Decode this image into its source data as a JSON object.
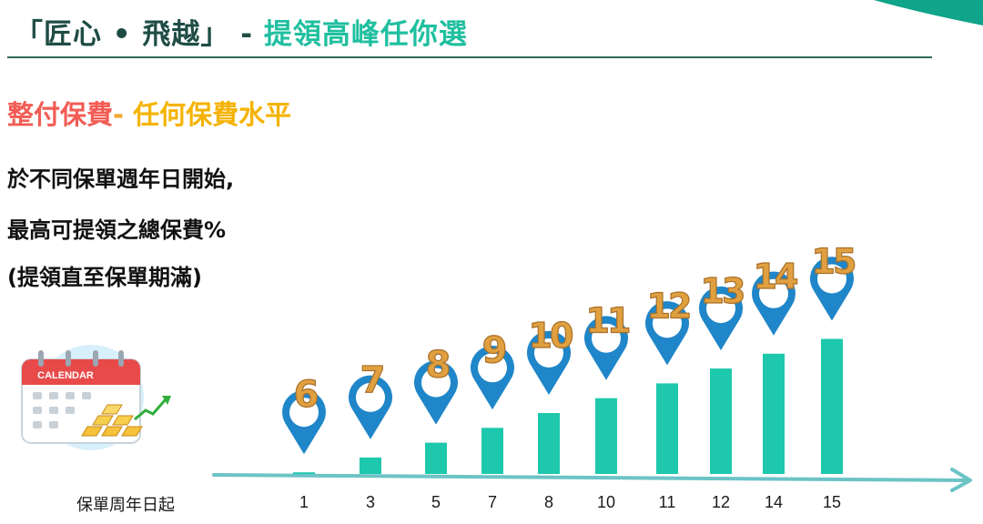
{
  "header": {
    "title_main": "「匠心 • 飛越」",
    "title_sep": " - ",
    "title_accent": "提領高峰任你選"
  },
  "subheading": {
    "part1": "整付保費",
    "dash": "-",
    "part2": " 任何保費水平"
  },
  "description": {
    "line1": "於不同保單週年日開始,",
    "line2": "最高可提領之總保費%",
    "line3": "(提領直至保單期滿)"
  },
  "illustration": {
    "calendar_label": "CALENDAR"
  },
  "colors": {
    "bar": "#1ec8ad",
    "axis": "#6cc3c6",
    "pin": "#1f86c9",
    "gold": "#e0a040",
    "title_dark": "#1f4d45",
    "title_accent": "#1fbf9f"
  },
  "chart_data": {
    "type": "bar",
    "xlabel": "保單周年日起",
    "categories": [
      "1",
      "3",
      "5",
      "7",
      "8",
      "10",
      "11",
      "12",
      "14",
      "15"
    ],
    "values": [
      6,
      7,
      8,
      9,
      10,
      11,
      12,
      13,
      14,
      15
    ],
    "data_labels": [
      "6",
      "7",
      "8",
      "9",
      "10",
      "11",
      "12",
      "13",
      "14",
      "15"
    ]
  }
}
